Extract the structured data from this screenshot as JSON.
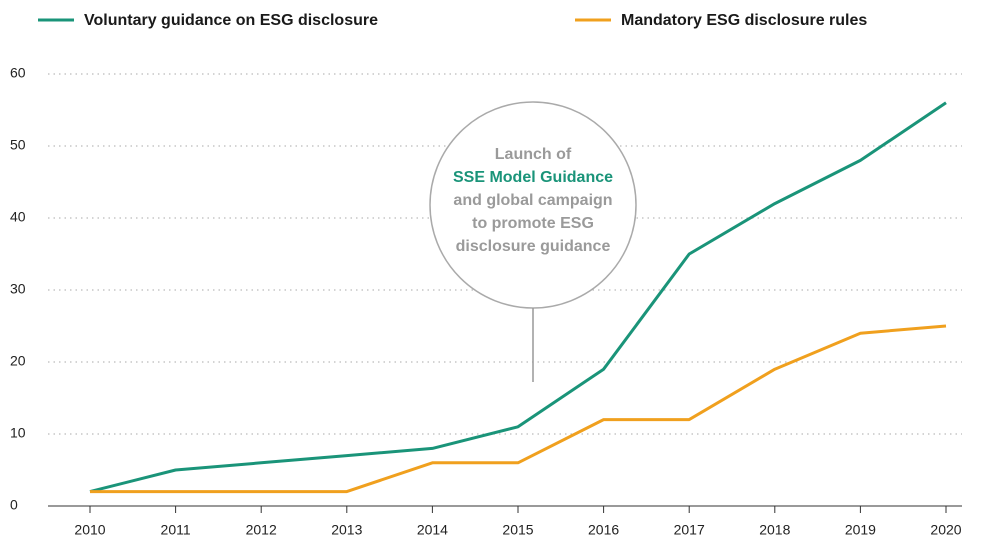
{
  "chart_data": {
    "type": "line",
    "categories": [
      "2010",
      "2011",
      "2012",
      "2013",
      "2014",
      "2015",
      "2016",
      "2017",
      "2018",
      "2019",
      "2020"
    ],
    "series": [
      {
        "name": "Voluntary guidance on ESG disclosure",
        "color": "#1a9479",
        "values": [
          2,
          5,
          6,
          7,
          8,
          11,
          19,
          35,
          42,
          48,
          56
        ]
      },
      {
        "name": "Mandatory ESG disclosure rules",
        "color": "#f0a01e",
        "values": [
          2,
          2,
          2,
          2,
          6,
          6,
          12,
          12,
          19,
          24,
          25
        ]
      }
    ],
    "ylim": [
      0,
      60
    ],
    "yticks": [
      0,
      10,
      20,
      30,
      40,
      50,
      60
    ],
    "grid": true,
    "legend": "top",
    "annotation": [
      "Launch of",
      "SSE Model Guidance",
      "and global campaign",
      "to promote ESG",
      "disclosure guidance"
    ]
  }
}
